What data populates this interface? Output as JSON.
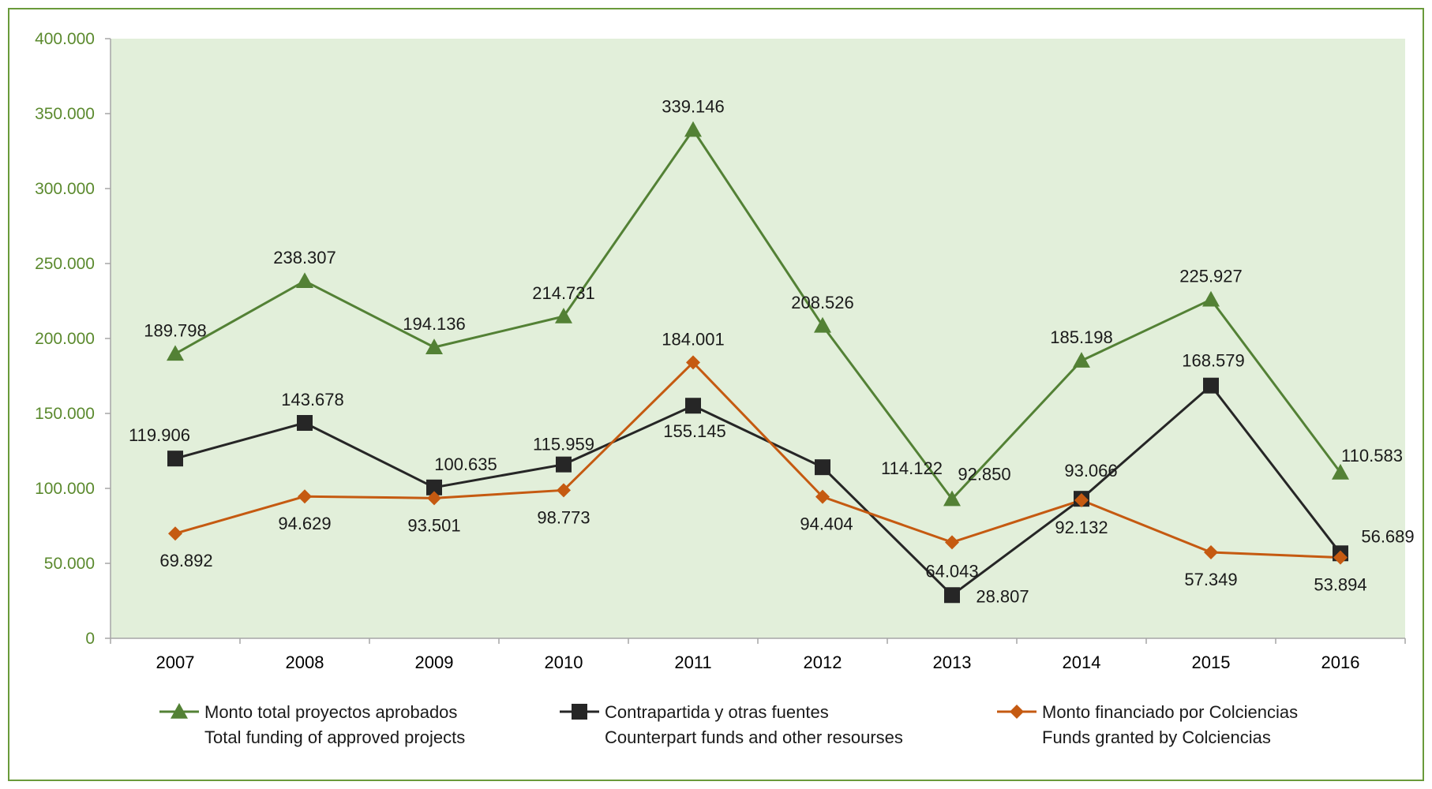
{
  "chart_data": {
    "type": "line",
    "categories": [
      "2007",
      "2008",
      "2009",
      "2010",
      "2011",
      "2012",
      "2013",
      "2014",
      "2015",
      "2016"
    ],
    "ylim": [
      0,
      400000
    ],
    "yticks": [
      0,
      50000,
      100000,
      150000,
      200000,
      250000,
      300000,
      350000,
      400000
    ],
    "ytick_labels": [
      "0",
      "50.000",
      "100.000",
      "150.000",
      "200.000",
      "250.000",
      "300.000",
      "350.000",
      "400.000"
    ],
    "grid": false,
    "legend_position": "bottom",
    "plot_background": "#e2efda",
    "axis_label_color": "#5b8a2e",
    "series": [
      {
        "name": "Monto total proyectos aprobados",
        "name_en": "Total funding of approved projects",
        "color": "#538135",
        "marker": "triangle",
        "values": [
          189798,
          238307,
          194136,
          214731,
          339146,
          208526,
          92850,
          185198,
          225927,
          110583
        ],
        "labels": [
          "189.798",
          "238.307",
          "194.136",
          "214.731",
          "339.146",
          "208.526",
          "92.850",
          "185.198",
          "225.927",
          "110.583"
        ]
      },
      {
        "name": "Contrapartida y otras fuentes",
        "name_en": "Counterpart funds and other resourses",
        "color": "#262626",
        "marker": "square",
        "values": [
          119906,
          143678,
          100635,
          115959,
          155145,
          114122,
          28807,
          93066,
          168579,
          56689
        ],
        "labels": [
          "119.906",
          "143.678",
          "100.635",
          "115.959",
          "155.145",
          "114.122",
          "28.807",
          "93.066",
          "168.579",
          "56.689"
        ]
      },
      {
        "name": "Monto financiado por Colciencias",
        "name_en": "Funds granted by Colciencias",
        "color": "#c55a11",
        "marker": "diamond",
        "values": [
          69892,
          94629,
          93501,
          98773,
          184001,
          94404,
          64043,
          92132,
          57349,
          53894
        ],
        "labels": [
          "69.892",
          "94.629",
          "93.501",
          "98.773",
          "184.001",
          "94.404",
          "64.043",
          "92.132",
          "57.349",
          "53.894"
        ]
      }
    ]
  }
}
